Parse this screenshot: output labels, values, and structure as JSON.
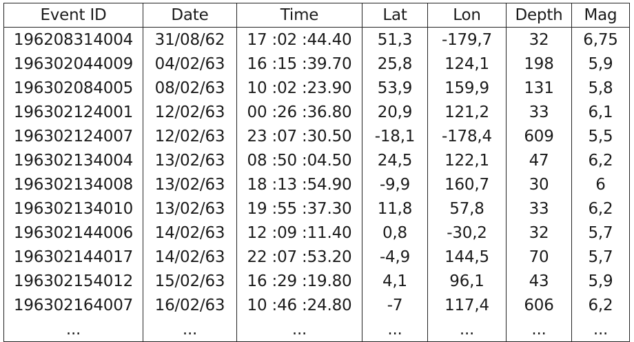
{
  "table": {
    "headers": [
      "Event ID",
      "Date",
      "Time",
      "Lat",
      "Lon",
      "Depth",
      "Mag"
    ],
    "rows": [
      [
        "196208314004",
        "31/08/62",
        "17 :02 :44.40",
        "51,3",
        "-179,7",
        "32",
        "6,75"
      ],
      [
        "196302044009",
        "04/02/63",
        "16 :15 :39.70",
        "25,8",
        "124,1",
        "198",
        "5,9"
      ],
      [
        "196302084005",
        "08/02/63",
        "10 :02 :23.90",
        "53,9",
        "159,9",
        "131",
        "5,8"
      ],
      [
        "196302124001",
        "12/02/63",
        "00 :26 :36.80",
        "20,9",
        "121,2",
        "33",
        "6,1"
      ],
      [
        "196302124007",
        "12/02/63",
        "23 :07 :30.50",
        "-18,1",
        "-178,4",
        "609",
        "5,5"
      ],
      [
        "196302134004",
        "13/02/63",
        "08 :50 :04.50",
        "24,5",
        "122,1",
        "47",
        "6,2"
      ],
      [
        "196302134008",
        "13/02/63",
        "18 :13 :54.90",
        "-9,9",
        "160,7",
        "30",
        "6"
      ],
      [
        "196302134010",
        "13/02/63",
        "19 :55 :37.30",
        "11,8",
        "57,8",
        "33",
        "6,2"
      ],
      [
        "196302144006",
        "14/02/63",
        "12 :09 :11.40",
        "0,8",
        "-30,2",
        "32",
        "5,7"
      ],
      [
        "196302144017",
        "14/02/63",
        "22 :07 :53.20",
        "-4,9",
        "144,5",
        "70",
        "5,7"
      ],
      [
        "196302154012",
        "15/02/63",
        "16 :29 :19.80",
        "4,1",
        "96,1",
        "43",
        "5,9"
      ],
      [
        "196302164007",
        "16/02/63",
        "10 :46 :24.80",
        "-7",
        "117,4",
        "606",
        "6,2"
      ],
      [
        "...",
        "...",
        "...",
        "...",
        "...",
        "...",
        "..."
      ]
    ]
  }
}
